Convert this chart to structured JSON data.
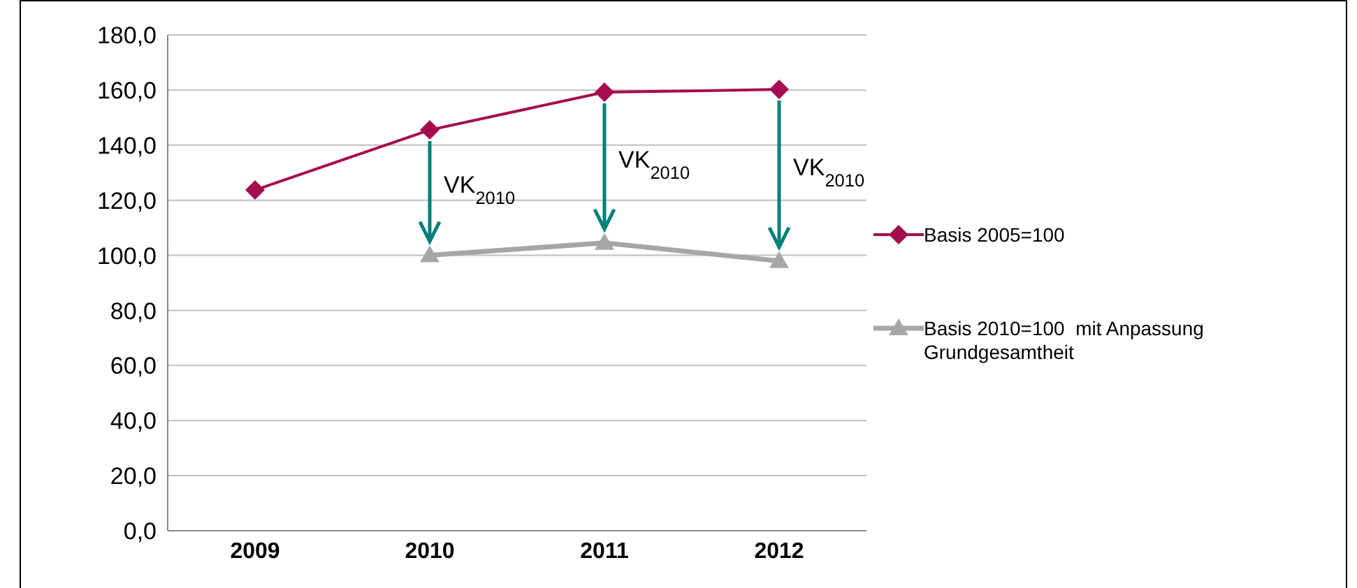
{
  "chart_data": {
    "type": "line",
    "categories": [
      "2009",
      "2010",
      "2011",
      "2012"
    ],
    "series": [
      {
        "name": "Basis 2005=100",
        "color": "#a50d4f",
        "marker": "diamond",
        "values": [
          123.7,
          145.5,
          159.2,
          160.2
        ]
      },
      {
        "name": "Basis 2010=100  mit Anpassung Grundgesamtheit",
        "color": "#a6a6a6",
        "marker": "triangle",
        "values": [
          null,
          100.0,
          104.5,
          97.9
        ]
      }
    ],
    "ylim": [
      0,
      180
    ],
    "yticks": [
      {
        "value": 0,
        "label": "0,0"
      },
      {
        "value": 20,
        "label": "20,0"
      },
      {
        "value": 40,
        "label": "40,0"
      },
      {
        "value": 60,
        "label": "60,0"
      },
      {
        "value": 80,
        "label": "80,0"
      },
      {
        "value": 100,
        "label": "100,0"
      },
      {
        "value": 120,
        "label": "120,0"
      },
      {
        "value": 140,
        "label": "140,0"
      },
      {
        "value": 160,
        "label": "160,0"
      },
      {
        "value": 180,
        "label": "180,0"
      }
    ],
    "grid": "y",
    "legend": "right",
    "annotations": [
      "VK$_{2010}$",
      "VK$_{2010}$",
      "VK$_{2010}$"
    ]
  }
}
